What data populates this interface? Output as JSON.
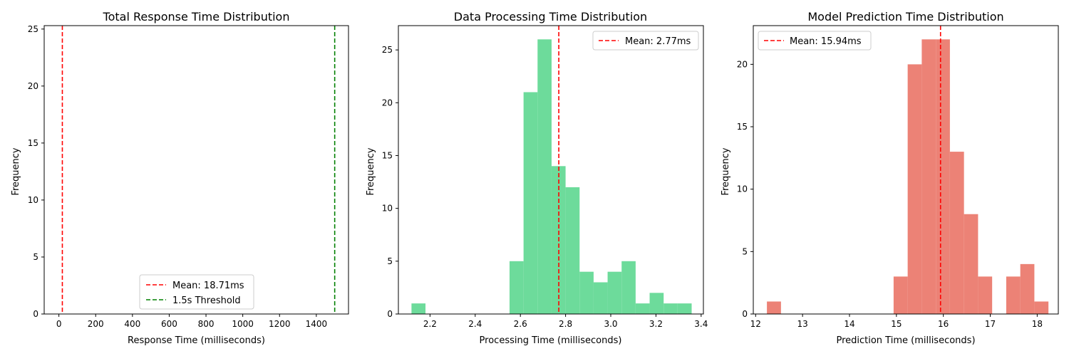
{
  "chart_data": [
    {
      "type": "bar",
      "title": "Total Response Time Distribution",
      "xlabel": "Response Time (milliseconds)",
      "ylabel": "Frequency",
      "xlim": [
        -80,
        1575
      ],
      "ylim": [
        0,
        25.3
      ],
      "xticks": [
        0,
        200,
        400,
        600,
        800,
        1000,
        1200,
        1400
      ],
      "yticks": [
        0,
        5,
        10,
        15,
        20,
        25
      ],
      "bar_color": "#3498db",
      "bins": [],
      "reference_lines": [
        {
          "x": 18.71,
          "color": "#ff0000",
          "label": "Mean: 18.71ms"
        },
        {
          "x": 1500,
          "color": "#008000",
          "label": "1.5s Threshold"
        }
      ],
      "legend_position": "lower-center"
    },
    {
      "type": "bar",
      "title": "Data Processing Time Distribution",
      "xlabel": "Processing Time (milliseconds)",
      "ylabel": "Frequency",
      "xlim": [
        2.06,
        3.41
      ],
      "ylim": [
        0,
        27.3
      ],
      "xticks": [
        2.2,
        2.4,
        2.6,
        2.8,
        3.0,
        3.2,
        3.4
      ],
      "tick_labels": [
        "2.2",
        "2.4",
        "2.6",
        "2.8",
        "3.0",
        "3.2",
        "3.4"
      ],
      "yticks": [
        0,
        5,
        10,
        15,
        20,
        25
      ],
      "bar_color": "#6ddb9b",
      "bins": [
        {
          "x0": 2.118,
          "x1": 2.18,
          "count": 1
        },
        {
          "x0": 2.18,
          "x1": 2.242,
          "count": 0
        },
        {
          "x0": 2.242,
          "x1": 2.304,
          "count": 0
        },
        {
          "x0": 2.304,
          "x1": 2.366,
          "count": 0
        },
        {
          "x0": 2.366,
          "x1": 2.428,
          "count": 0
        },
        {
          "x0": 2.428,
          "x1": 2.49,
          "count": 0
        },
        {
          "x0": 2.49,
          "x1": 2.552,
          "count": 0
        },
        {
          "x0": 2.552,
          "x1": 2.614,
          "count": 5
        },
        {
          "x0": 2.614,
          "x1": 2.676,
          "count": 21
        },
        {
          "x0": 2.676,
          "x1": 2.738,
          "count": 26
        },
        {
          "x0": 2.738,
          "x1": 2.8,
          "count": 14
        },
        {
          "x0": 2.8,
          "x1": 2.862,
          "count": 12
        },
        {
          "x0": 2.862,
          "x1": 2.924,
          "count": 4
        },
        {
          "x0": 2.924,
          "x1": 2.986,
          "count": 3
        },
        {
          "x0": 2.986,
          "x1": 3.048,
          "count": 4
        },
        {
          "x0": 3.048,
          "x1": 3.11,
          "count": 5
        },
        {
          "x0": 3.11,
          "x1": 3.172,
          "count": 1
        },
        {
          "x0": 3.172,
          "x1": 3.234,
          "count": 2
        },
        {
          "x0": 3.234,
          "x1": 3.296,
          "count": 1
        },
        {
          "x0": 3.296,
          "x1": 3.358,
          "count": 1
        }
      ],
      "reference_lines": [
        {
          "x": 2.77,
          "color": "#ff0000",
          "label": "Mean: 2.77ms"
        }
      ],
      "legend_position": "top-right"
    },
    {
      "type": "bar",
      "title": "Model Prediction Time Distribution",
      "xlabel": "Prediction Time (milliseconds)",
      "ylabel": "Frequency",
      "xlim": [
        11.95,
        18.45
      ],
      "ylim": [
        0,
        23.1
      ],
      "xticks": [
        12,
        13,
        14,
        15,
        16,
        17,
        18
      ],
      "yticks": [
        0,
        5,
        10,
        15,
        20
      ],
      "bar_color": "#ec8276",
      "bins": [
        {
          "x0": 12.24,
          "x1": 12.54,
          "count": 1
        },
        {
          "x0": 12.54,
          "x1": 12.84,
          "count": 0
        },
        {
          "x0": 12.84,
          "x1": 13.14,
          "count": 0
        },
        {
          "x0": 13.14,
          "x1": 13.44,
          "count": 0
        },
        {
          "x0": 13.44,
          "x1": 13.74,
          "count": 0
        },
        {
          "x0": 13.74,
          "x1": 14.04,
          "count": 0
        },
        {
          "x0": 14.04,
          "x1": 14.34,
          "count": 0
        },
        {
          "x0": 14.34,
          "x1": 14.64,
          "count": 0
        },
        {
          "x0": 14.64,
          "x1": 14.94,
          "count": 0
        },
        {
          "x0": 14.94,
          "x1": 15.24,
          "count": 3
        },
        {
          "x0": 15.24,
          "x1": 15.54,
          "count": 20
        },
        {
          "x0": 15.54,
          "x1": 15.84,
          "count": 22
        },
        {
          "x0": 15.84,
          "x1": 16.14,
          "count": 22
        },
        {
          "x0": 16.14,
          "x1": 16.44,
          "count": 13
        },
        {
          "x0": 16.44,
          "x1": 16.74,
          "count": 8
        },
        {
          "x0": 16.74,
          "x1": 17.04,
          "count": 3
        },
        {
          "x0": 17.04,
          "x1": 17.34,
          "count": 0
        },
        {
          "x0": 17.34,
          "x1": 17.64,
          "count": 3
        },
        {
          "x0": 17.64,
          "x1": 17.94,
          "count": 4
        },
        {
          "x0": 17.94,
          "x1": 18.24,
          "count": 1
        }
      ],
      "reference_lines": [
        {
          "x": 15.94,
          "color": "#ff0000",
          "label": "Mean: 15.94ms"
        }
      ],
      "legend_position": "top-left"
    }
  ]
}
